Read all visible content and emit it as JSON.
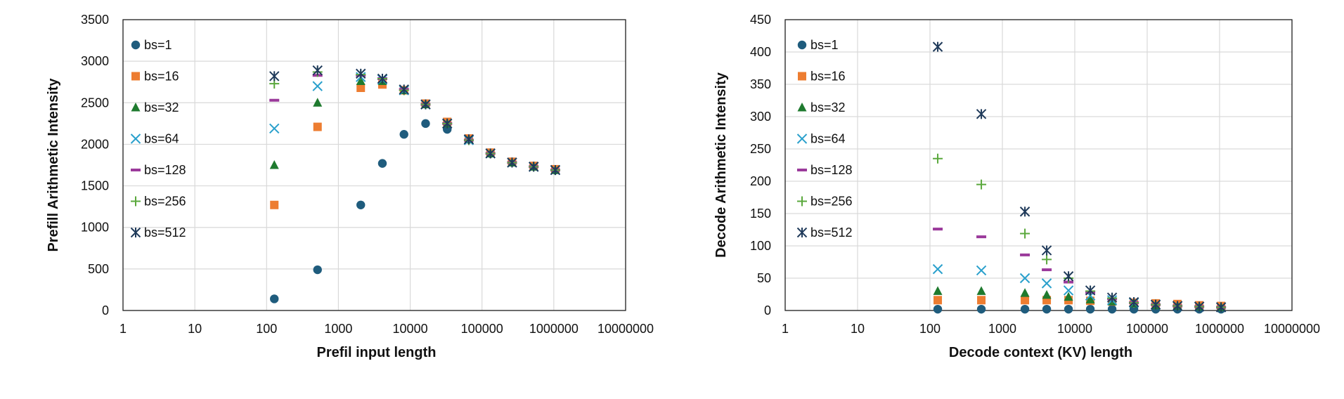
{
  "chart_data": [
    {
      "type": "scatter",
      "title": "",
      "xlabel": "Prefil input length",
      "ylabel": "Prefill Arithmetic Intensity",
      "xscale": "log",
      "xlim": [
        1,
        10000000
      ],
      "ylim": [
        0,
        3500
      ],
      "x_ticks": [
        1,
        10,
        100,
        1000,
        10000,
        100000,
        1000000,
        10000000
      ],
      "x_tick_labels": [
        "1",
        "10",
        "100",
        "1000",
        "10000",
        "100000",
        "1000000",
        "10000000"
      ],
      "y_ticks": [
        0,
        500,
        1000,
        1500,
        2000,
        2500,
        3000,
        3500
      ],
      "y_tick_labels": [
        "0",
        "500",
        "1000",
        "1500",
        "2000",
        "2500",
        "3000",
        "3500"
      ],
      "grid": true,
      "legend_position": "top-left inside",
      "series": [
        {
          "name": "bs=1",
          "marker": "circle",
          "color": "#1f5c7d",
          "points": [
            [
              128,
              140
            ],
            [
              512,
              490
            ],
            [
              2048,
              1270
            ],
            [
              4096,
              1770
            ],
            [
              8192,
              2120
            ],
            [
              16384,
              2250
            ],
            [
              32768,
              2180
            ],
            [
              65536,
              2060
            ],
            [
              131072,
              1890
            ],
            [
              262144,
              1790
            ],
            [
              524288,
              1740
            ],
            [
              1048576,
              1690
            ]
          ]
        },
        {
          "name": "bs=16",
          "marker": "square",
          "color": "#ed7d31",
          "points": [
            [
              128,
              1270
            ],
            [
              512,
              2210
            ],
            [
              2048,
              2680
            ],
            [
              4096,
              2720
            ],
            [
              8192,
              2650
            ],
            [
              16384,
              2490
            ],
            [
              32768,
              2270
            ],
            [
              65536,
              2070
            ],
            [
              131072,
              1900
            ],
            [
              262144,
              1790
            ],
            [
              524288,
              1740
            ],
            [
              1048576,
              1700
            ]
          ]
        },
        {
          "name": "bs=32",
          "marker": "triangle",
          "color": "#1e7a2e",
          "points": [
            [
              128,
              1750
            ],
            [
              512,
              2500
            ],
            [
              2048,
              2760
            ],
            [
              4096,
              2760
            ],
            [
              8192,
              2650
            ],
            [
              16384,
              2480
            ],
            [
              32768,
              2250
            ],
            [
              65536,
              2060
            ],
            [
              131072,
              1890
            ],
            [
              262144,
              1780
            ],
            [
              524288,
              1730
            ],
            [
              1048576,
              1690
            ]
          ]
        },
        {
          "name": "bs=64",
          "marker": "x",
          "color": "#2aa0cc",
          "points": [
            [
              128,
              2190
            ],
            [
              512,
              2700
            ],
            [
              2048,
              2810
            ],
            [
              4096,
              2780
            ],
            [
              8192,
              2650
            ],
            [
              16384,
              2480
            ],
            [
              32768,
              2250
            ],
            [
              65536,
              2050
            ],
            [
              131072,
              1890
            ],
            [
              262144,
              1780
            ],
            [
              524288,
              1730
            ],
            [
              1048576,
              1690
            ]
          ]
        },
        {
          "name": "bs=128",
          "marker": "dash",
          "color": "#9b3a9b",
          "points": [
            [
              128,
              2530
            ],
            [
              512,
              2830
            ],
            [
              2048,
              2830
            ],
            [
              4096,
              2790
            ],
            [
              8192,
              2660
            ],
            [
              16384,
              2480
            ],
            [
              32768,
              2250
            ],
            [
              65536,
              2050
            ],
            [
              131072,
              1890
            ],
            [
              262144,
              1780
            ],
            [
              524288,
              1730
            ],
            [
              1048576,
              1690
            ]
          ]
        },
        {
          "name": "bs=256",
          "marker": "plus",
          "color": "#5aa83c",
          "points": [
            [
              128,
              2730
            ],
            [
              512,
              2870
            ],
            [
              2048,
              2840
            ],
            [
              4096,
              2790
            ],
            [
              8192,
              2650
            ],
            [
              16384,
              2480
            ],
            [
              32768,
              2250
            ],
            [
              65536,
              2050
            ],
            [
              131072,
              1890
            ],
            [
              262144,
              1780
            ],
            [
              524288,
              1730
            ],
            [
              1048576,
              1690
            ]
          ]
        },
        {
          "name": "bs=512",
          "marker": "star",
          "color": "#1f3a5a",
          "points": [
            [
              128,
              2820
            ],
            [
              512,
              2890
            ],
            [
              2048,
              2850
            ],
            [
              4096,
              2790
            ],
            [
              8192,
              2660
            ],
            [
              16384,
              2480
            ],
            [
              32768,
              2250
            ],
            [
              65536,
              2060
            ],
            [
              131072,
              1890
            ],
            [
              262144,
              1780
            ],
            [
              524288,
              1730
            ],
            [
              1048576,
              1690
            ]
          ]
        }
      ]
    },
    {
      "type": "scatter",
      "title": "",
      "xlabel": "Decode context (KV) length",
      "ylabel": "Decode Arithmetic Intensity",
      "xscale": "log",
      "xlim": [
        1,
        10000000
      ],
      "ylim": [
        0,
        450
      ],
      "x_ticks": [
        1,
        10,
        100,
        1000,
        10000,
        100000,
        1000000,
        10000000
      ],
      "x_tick_labels": [
        "1",
        "10",
        "100",
        "1000",
        "10000",
        "100000",
        "1000000",
        "10000000"
      ],
      "y_ticks": [
        0,
        50,
        100,
        150,
        200,
        250,
        300,
        350,
        400,
        450
      ],
      "y_tick_labels": [
        "0",
        "50",
        "100",
        "150",
        "200",
        "250",
        "300",
        "350",
        "400",
        "450"
      ],
      "grid": true,
      "legend_position": "top-left inside",
      "series": [
        {
          "name": "bs=1",
          "marker": "circle",
          "color": "#1f5c7d",
          "points": [
            [
              128,
              2
            ],
            [
              512,
              2
            ],
            [
              2048,
              2
            ],
            [
              4096,
              2
            ],
            [
              8192,
              2
            ],
            [
              16384,
              2
            ],
            [
              32768,
              2
            ],
            [
              65536,
              2
            ],
            [
              131072,
              2
            ],
            [
              262144,
              2
            ],
            [
              524288,
              2
            ],
            [
              1048576,
              2
            ]
          ]
        },
        {
          "name": "bs=16",
          "marker": "square",
          "color": "#ed7d31",
          "points": [
            [
              128,
              16
            ],
            [
              512,
              16
            ],
            [
              2048,
              16
            ],
            [
              4096,
              16
            ],
            [
              8192,
              16
            ],
            [
              16384,
              15
            ],
            [
              32768,
              14
            ],
            [
              65536,
              12
            ],
            [
              131072,
              11
            ],
            [
              262144,
              10
            ],
            [
              524288,
              8
            ],
            [
              1048576,
              7
            ]
          ]
        },
        {
          "name": "bs=32",
          "marker": "triangle",
          "color": "#1e7a2e",
          "points": [
            [
              128,
              30
            ],
            [
              512,
              30
            ],
            [
              2048,
              27
            ],
            [
              4096,
              24
            ],
            [
              8192,
              21
            ],
            [
              16384,
              17
            ],
            [
              32768,
              14
            ],
            [
              65536,
              11
            ],
            [
              131072,
              8
            ],
            [
              262144,
              7
            ],
            [
              524288,
              6
            ],
            [
              1048576,
              5
            ]
          ]
        },
        {
          "name": "bs=64",
          "marker": "x",
          "color": "#2aa0cc",
          "points": [
            [
              128,
              64
            ],
            [
              512,
              62
            ],
            [
              2048,
              50
            ],
            [
              4096,
              42
            ],
            [
              8192,
              31
            ],
            [
              16384,
              23
            ],
            [
              32768,
              16
            ],
            [
              65536,
              12
            ],
            [
              131072,
              9
            ],
            [
              262144,
              7
            ],
            [
              524288,
              6
            ],
            [
              1048576,
              5
            ]
          ]
        },
        {
          "name": "bs=128",
          "marker": "dash",
          "color": "#9b3a9b",
          "points": [
            [
              128,
              126
            ],
            [
              512,
              114
            ],
            [
              2048,
              86
            ],
            [
              4096,
              63
            ],
            [
              8192,
              44
            ],
            [
              16384,
              28
            ],
            [
              32768,
              18
            ],
            [
              65536,
              12
            ],
            [
              131072,
              9
            ],
            [
              262144,
              7
            ],
            [
              524288,
              6
            ],
            [
              1048576,
              5
            ]
          ]
        },
        {
          "name": "bs=256",
          "marker": "plus",
          "color": "#5aa83c",
          "points": [
            [
              128,
              235
            ],
            [
              512,
              195
            ],
            [
              2048,
              119
            ],
            [
              4096,
              79
            ],
            [
              8192,
              50
            ],
            [
              16384,
              30
            ],
            [
              32768,
              19
            ],
            [
              65536,
              12
            ],
            [
              131072,
              9
            ],
            [
              262144,
              7
            ],
            [
              524288,
              6
            ],
            [
              1048576,
              5
            ]
          ]
        },
        {
          "name": "bs=512",
          "marker": "star",
          "color": "#1f3a5a",
          "points": [
            [
              128,
              408
            ],
            [
              512,
              304
            ],
            [
              2048,
              153
            ],
            [
              4096,
              93
            ],
            [
              8192,
              53
            ],
            [
              16384,
              31
            ],
            [
              32768,
              20
            ],
            [
              65536,
              13
            ],
            [
              131072,
              9
            ],
            [
              262144,
              7
            ],
            [
              524288,
              6
            ],
            [
              1048576,
              5
            ]
          ]
        }
      ]
    }
  ]
}
